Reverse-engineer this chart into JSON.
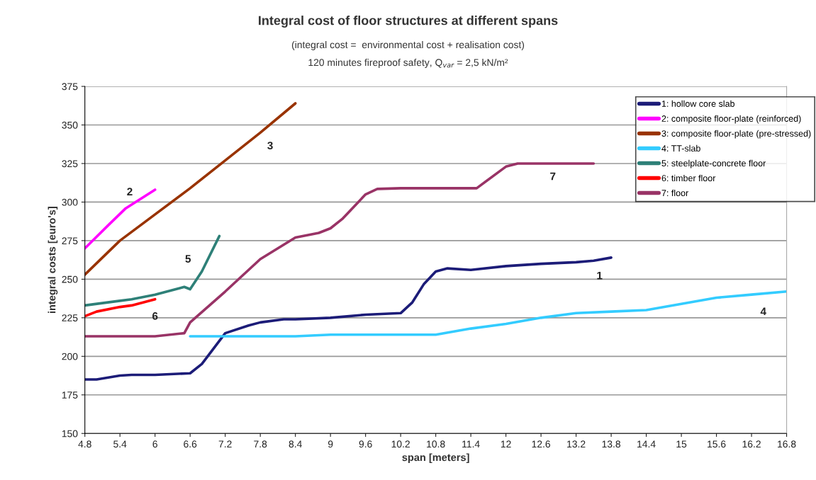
{
  "chart_data": {
    "type": "line",
    "title": "Integral cost of floor structures at different spans",
    "subtitle": "(integral cost =  environmental cost + realisation cost)\n120 minutes fireproof safety, Q$_{var}$ = 2,5 kN/m²",
    "xlabel": "span [meters]",
    "ylabel": "integral costs [euro's]",
    "xlim": [
      4.8,
      16.8
    ],
    "xticks": [
      4.8,
      5.4,
      6,
      6.6,
      7.2,
      7.8,
      8.4,
      9,
      9.6,
      10.2,
      10.8,
      11.4,
      12,
      12.6,
      13.2,
      13.8,
      14.4,
      15,
      15.6,
      16.2,
      16.8
    ],
    "ylim": [
      150,
      375
    ],
    "yticks": [
      150,
      175,
      200,
      225,
      250,
      275,
      300,
      325,
      350,
      375
    ],
    "grid": "y",
    "legend": "top right",
    "marker": "none",
    "line_style": "solid",
    "series": [
      {
        "name": "1: hollow core slab",
        "color": "#1c1c78",
        "x": [
          4.8,
          5.0,
          5.4,
          5.6,
          6.0,
          6.6,
          6.8,
          7.0,
          7.2,
          7.6,
          7.8,
          8.2,
          8.4,
          9.0,
          9.6,
          10.2,
          10.4,
          10.6,
          10.8,
          11.0,
          11.4,
          12.0,
          12.6,
          13.2,
          13.5,
          13.8
        ],
        "values": [
          185,
          185,
          187.5,
          188,
          188,
          189,
          195,
          205,
          215,
          220,
          222,
          224,
          224,
          225,
          227,
          228,
          235,
          247,
          255,
          257,
          256,
          258.5,
          260,
          261,
          262,
          264
        ]
      },
      {
        "name": "2: composite floor-plate (reinforced)",
        "color": "#ff00ff",
        "x": [
          4.8,
          5.2,
          5.5,
          6.0
        ],
        "values": [
          270,
          285,
          296,
          308
        ]
      },
      {
        "name": "3: composite floor-plate (pre-stressed)",
        "color": "#993300",
        "x": [
          4.8,
          5.4,
          6.0,
          6.6,
          7.2,
          7.8,
          8.4
        ],
        "values": [
          253,
          275,
          292,
          309,
          327,
          345,
          364
        ]
      },
      {
        "name": "4: TT-slab",
        "color": "#33ccff",
        "x": [
          6.6,
          8.4,
          9.0,
          9.6,
          10.2,
          10.8,
          11.4,
          12.0,
          12.6,
          13.2,
          13.8,
          14.4,
          15.0,
          15.6,
          16.2,
          16.8
        ],
        "values": [
          213,
          213,
          214,
          214,
          214,
          214,
          218,
          221,
          225,
          228,
          229,
          230,
          234,
          238,
          240,
          242
        ]
      },
      {
        "name": "5: steelplate-concrete floor",
        "color": "#2e8078",
        "x": [
          4.8,
          5.4,
          5.6,
          6.0,
          6.5,
          6.6,
          6.8,
          7.1
        ],
        "values": [
          233,
          236,
          237,
          240,
          245,
          243.5,
          255,
          278
        ]
      },
      {
        "name": "6: timber floor",
        "color": "#ff0000",
        "x": [
          4.8,
          5.0,
          5.4,
          5.6,
          6.0
        ],
        "values": [
          226,
          229,
          232,
          233,
          237
        ]
      },
      {
        "name": "7: floor",
        "color": "#993366",
        "x": [
          4.8,
          5.6,
          6.0,
          6.5,
          6.6,
          7.2,
          7.8,
          8.4,
          8.8,
          9.0,
          9.2,
          9.6,
          9.8,
          10.2,
          11.5,
          12.0,
          12.2,
          13.5
        ],
        "values": [
          213,
          213,
          213,
          215,
          222,
          242,
          263,
          277,
          280,
          283,
          289,
          305,
          308.5,
          309,
          309,
          323,
          325,
          325
        ]
      }
    ],
    "annotations": [
      {
        "text": "1",
        "x": 13.5,
        "y": 262
      },
      {
        "text": "2",
        "x": 5.5,
        "y": 296
      },
      {
        "text": "3",
        "x": 7.8,
        "y": 345
      },
      {
        "text": "4",
        "x": 16.2,
        "y": 240
      },
      {
        "text": "5",
        "x": 6.8,
        "y": 255
      },
      {
        "text": "6",
        "x": 6.0,
        "y": 237
      },
      {
        "text": "7",
        "x": 12.6,
        "y": 325
      }
    ]
  }
}
